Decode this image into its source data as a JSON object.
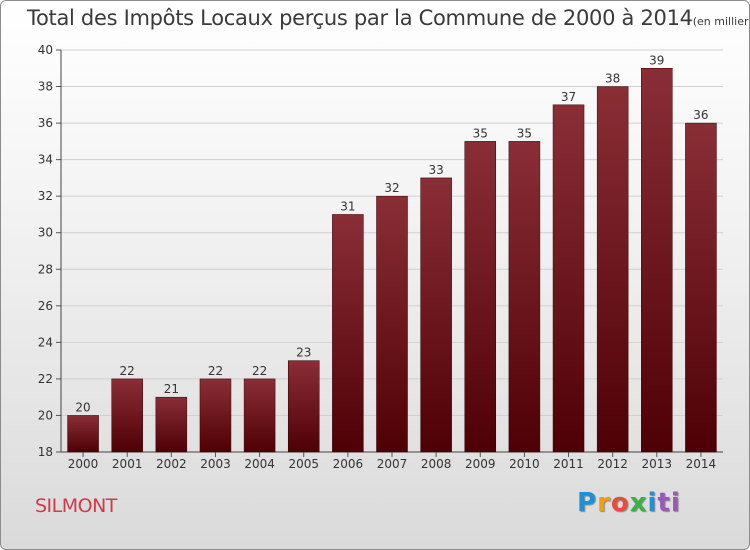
{
  "chart_data": {
    "type": "bar",
    "title": "Total des Impôts Locaux perçus par la Commune de 2000 à 2014",
    "subtitle": "(en milliers d'€)",
    "categories": [
      "2000",
      "2001",
      "2002",
      "2003",
      "2004",
      "2005",
      "2006",
      "2007",
      "2008",
      "2009",
      "2010",
      "2011",
      "2012",
      "2013",
      "2014"
    ],
    "values": [
      20,
      22,
      21,
      22,
      22,
      23,
      31,
      32,
      33,
      35,
      35,
      37,
      38,
      39,
      36
    ],
    "ylim": [
      18,
      40
    ],
    "yticks": [
      18,
      20,
      22,
      24,
      26,
      28,
      30,
      32,
      34,
      36,
      38,
      40
    ],
    "xlabel": "",
    "ylabel": "",
    "grid": true,
    "bar_color": "#6b0f16"
  },
  "footer": {
    "commune": "SILMONT",
    "logo": [
      "P",
      "r",
      "o",
      "x",
      "i",
      "ti"
    ]
  }
}
